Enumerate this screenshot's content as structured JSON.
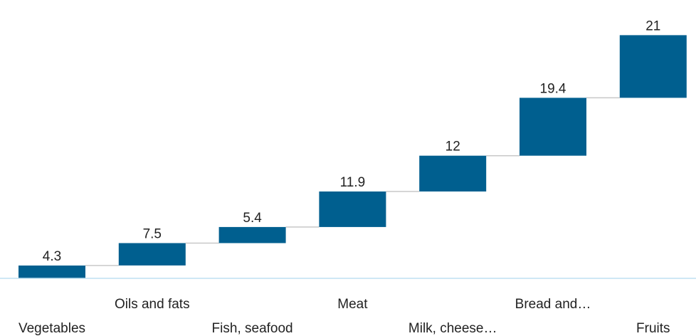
{
  "chart_data": {
    "type": "waterfall",
    "categories": [
      "Vegetables",
      "Oils and fats",
      "Fish, seafood",
      "Meat",
      "Milk, cheese…",
      "Bread and…",
      "Fruits"
    ],
    "values": [
      4.3,
      7.5,
      5.4,
      11.9,
      12,
      19.4,
      21
    ],
    "data_labels": [
      "4.3",
      "7.5",
      "5.4",
      "11.9",
      "12",
      "19.4",
      "21"
    ],
    "colors": {
      "bar": "#005f8f",
      "connector": "#c8c8c8",
      "axis": "#bfe0f2"
    },
    "grid": false,
    "legend": "none"
  }
}
